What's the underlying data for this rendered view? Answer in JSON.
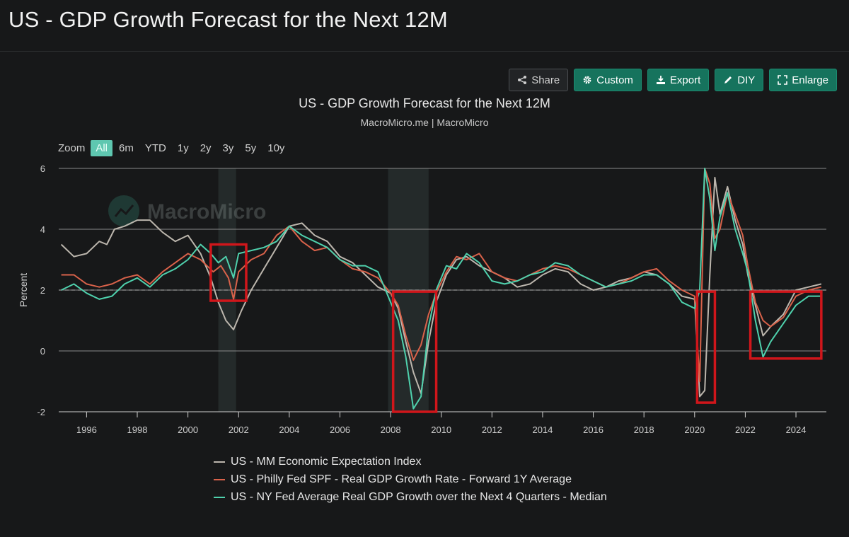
{
  "header": {
    "title": "US - GDP Growth Forecast for the Next 12M"
  },
  "toolbar": {
    "buttons": [
      {
        "name": "share-button",
        "label": "Share",
        "icon": "share-icon",
        "style": "share"
      },
      {
        "name": "custom-button",
        "label": "Custom",
        "icon": "gear-icon",
        "style": "accent"
      },
      {
        "name": "export-button",
        "label": "Export",
        "icon": "download-icon",
        "style": "accent"
      },
      {
        "name": "diy-button",
        "label": "DIY",
        "icon": "pencil-icon",
        "style": "accent"
      },
      {
        "name": "enlarge-button",
        "label": "Enlarge",
        "icon": "expand-icon",
        "style": "accent"
      }
    ]
  },
  "zoom": {
    "label": "Zoom",
    "options": [
      "All",
      "6m",
      "YTD",
      "1y",
      "2y",
      "3y",
      "5y",
      "10y"
    ],
    "selected": "All"
  },
  "watermark": "MacroMicro",
  "colors": {
    "background": "#171819",
    "accent": "#16735d",
    "grid": "#8a8a8a",
    "highlight_box": "#d0161b",
    "recession_band": "#242a2a"
  },
  "chart_data": {
    "type": "line",
    "title": "US - GDP Growth Forecast for the Next 12M",
    "subtitle": "MacroMicro.me | MacroMicro",
    "xlabel": "",
    "ylabel": "Percent",
    "xlim": [
      1994.9,
      2025.2
    ],
    "ylim": [
      -2,
      6
    ],
    "x_ticks": [
      1996,
      1998,
      2000,
      2002,
      2004,
      2006,
      2008,
      2010,
      2012,
      2014,
      2016,
      2018,
      2020,
      2022,
      2024
    ],
    "y_ticks": [
      -2,
      0,
      2,
      4,
      6
    ],
    "grid": true,
    "reference_line": 2,
    "legend_position": "bottom-left",
    "recession_bands": [
      [
        2001.2,
        2001.9
      ],
      [
        2007.9,
        2009.5
      ]
    ],
    "highlight_boxes": [
      {
        "x": [
          2000.9,
          2002.3
        ],
        "y": [
          1.65,
          3.5
        ]
      },
      {
        "x": [
          2008.1,
          2009.8
        ],
        "y": [
          -2.0,
          1.95
        ]
      },
      {
        "x": [
          2020.1,
          2020.8
        ],
        "y": [
          -1.7,
          1.95
        ]
      },
      {
        "x": [
          2022.2,
          2025.0
        ],
        "y": [
          -0.25,
          1.95
        ]
      }
    ],
    "series": [
      {
        "name": "US - MM Economic Expectation Index",
        "color": "#bcb6ad",
        "x": [
          1995.0,
          1995.5,
          1996.0,
          1996.5,
          1996.8,
          1997.1,
          1997.5,
          1998.0,
          1998.5,
          1999.0,
          1999.5,
          2000.0,
          2000.5,
          2000.9,
          2001.2,
          2001.5,
          2001.8,
          2002.1,
          2002.5,
          2003.0,
          2003.5,
          2004.0,
          2004.5,
          2005.0,
          2005.5,
          2006.0,
          2006.5,
          2007.0,
          2007.5,
          2008.0,
          2008.3,
          2008.6,
          2008.9,
          2009.2,
          2009.5,
          2009.8,
          2010.2,
          2010.6,
          2011.0,
          2011.5,
          2012.0,
          2012.5,
          2013.0,
          2013.5,
          2014.0,
          2014.5,
          2015.0,
          2015.5,
          2016.0,
          2016.5,
          2017.0,
          2017.5,
          2018.0,
          2018.5,
          2019.0,
          2019.5,
          2020.0,
          2020.2,
          2020.4,
          2020.6,
          2020.8,
          2021.0,
          2021.3,
          2021.6,
          2021.9,
          2022.1,
          2022.4,
          2022.7,
          2023.0,
          2023.5,
          2024.0,
          2024.5,
          2025.0
        ],
        "values": [
          3.5,
          3.1,
          3.2,
          3.6,
          3.5,
          4.0,
          4.1,
          4.3,
          4.3,
          3.9,
          3.6,
          3.8,
          3.2,
          2.4,
          1.6,
          1.0,
          0.7,
          1.3,
          2.0,
          2.7,
          3.4,
          4.1,
          4.2,
          3.8,
          3.6,
          3.1,
          2.9,
          2.5,
          2.1,
          1.9,
          1.4,
          0.3,
          -0.7,
          -1.4,
          0.3,
          1.6,
          2.5,
          3.0,
          3.1,
          2.8,
          2.6,
          2.4,
          2.1,
          2.2,
          2.5,
          2.7,
          2.6,
          2.2,
          2.0,
          2.1,
          2.3,
          2.4,
          2.6,
          2.5,
          2.2,
          1.8,
          1.7,
          -1.5,
          -1.3,
          2.5,
          5.7,
          4.5,
          5.4,
          4.3,
          3.5,
          2.5,
          1.5,
          0.5,
          0.8,
          1.2,
          2.0,
          2.1,
          2.2
        ]
      },
      {
        "name": "US - Philly Fed SPF - Real GDP Growth Rate - Forward 1Y Average",
        "color": "#d9624a",
        "x": [
          1995.0,
          1995.5,
          1996.0,
          1996.5,
          1997.0,
          1997.5,
          1998.0,
          1998.5,
          1999.0,
          1999.5,
          2000.0,
          2000.5,
          2001.0,
          2001.3,
          2001.6,
          2001.8,
          2002.0,
          2002.5,
          2003.0,
          2003.5,
          2004.0,
          2004.5,
          2005.0,
          2005.5,
          2006.0,
          2006.5,
          2007.0,
          2007.5,
          2008.0,
          2008.3,
          2008.6,
          2008.9,
          2009.2,
          2009.5,
          2009.8,
          2010.2,
          2010.6,
          2011.0,
          2011.5,
          2012.0,
          2012.5,
          2013.0,
          2013.5,
          2014.0,
          2014.5,
          2015.0,
          2015.5,
          2016.0,
          2016.5,
          2017.0,
          2017.5,
          2018.0,
          2018.5,
          2019.0,
          2019.5,
          2020.0,
          2020.2,
          2020.4,
          2020.6,
          2020.8,
          2021.0,
          2021.3,
          2021.6,
          2021.9,
          2022.1,
          2022.4,
          2022.7,
          2023.0,
          2023.5,
          2024.0,
          2024.5,
          2025.0
        ],
        "values": [
          2.5,
          2.5,
          2.2,
          2.1,
          2.2,
          2.4,
          2.5,
          2.2,
          2.6,
          2.9,
          3.2,
          3.0,
          2.6,
          2.8,
          2.4,
          1.7,
          2.6,
          3.0,
          3.2,
          3.8,
          4.1,
          3.6,
          3.3,
          3.4,
          3.0,
          2.7,
          2.6,
          2.4,
          1.9,
          1.5,
          0.5,
          -0.3,
          0.2,
          1.2,
          1.9,
          2.6,
          3.1,
          3.0,
          3.2,
          2.6,
          2.4,
          2.3,
          2.5,
          2.7,
          2.8,
          2.7,
          2.5,
          2.3,
          2.1,
          2.2,
          2.4,
          2.6,
          2.7,
          2.3,
          2.0,
          1.8,
          -1.0,
          6.0,
          5.5,
          3.7,
          4.0,
          5.2,
          4.5,
          3.8,
          2.8,
          1.6,
          1.0,
          0.8,
          1.1,
          1.8,
          2.0,
          2.1
        ]
      },
      {
        "name": "US - NY Fed Average Real GDP Growth over the Next 4 Quarters - Median",
        "color": "#4fd1ad",
        "x": [
          1995.0,
          1995.5,
          1996.0,
          1996.5,
          1997.0,
          1997.5,
          1998.0,
          1998.5,
          1999.0,
          1999.5,
          2000.0,
          2000.5,
          2000.9,
          2001.2,
          2001.5,
          2001.8,
          2002.0,
          2002.5,
          2003.0,
          2003.5,
          2004.0,
          2004.5,
          2005.0,
          2005.5,
          2006.0,
          2006.5,
          2007.0,
          2007.5,
          2008.0,
          2008.3,
          2008.6,
          2008.9,
          2009.2,
          2009.5,
          2009.8,
          2010.2,
          2010.6,
          2011.0,
          2011.5,
          2012.0,
          2012.5,
          2013.0,
          2013.5,
          2014.0,
          2014.5,
          2015.0,
          2015.5,
          2016.0,
          2016.5,
          2017.0,
          2017.5,
          2018.0,
          2018.5,
          2019.0,
          2019.5,
          2020.0,
          2020.2,
          2020.4,
          2020.6,
          2020.8,
          2021.0,
          2021.3,
          2021.6,
          2021.9,
          2022.1,
          2022.4,
          2022.7,
          2023.0,
          2023.5,
          2024.0,
          2024.5,
          2025.0
        ],
        "values": [
          2.0,
          2.2,
          1.9,
          1.7,
          1.8,
          2.2,
          2.4,
          2.1,
          2.5,
          2.7,
          3.0,
          3.5,
          3.2,
          2.9,
          3.1,
          2.4,
          3.2,
          3.3,
          3.4,
          3.6,
          4.1,
          3.8,
          3.6,
          3.4,
          3.0,
          2.8,
          2.8,
          2.6,
          1.6,
          1.0,
          -0.2,
          -1.9,
          -1.5,
          0.8,
          2.0,
          2.8,
          2.7,
          3.2,
          2.9,
          2.3,
          2.2,
          2.3,
          2.5,
          2.6,
          2.9,
          2.8,
          2.5,
          2.3,
          2.1,
          2.2,
          2.3,
          2.5,
          2.5,
          2.2,
          1.6,
          1.4,
          2.0,
          6.0,
          5.0,
          3.3,
          4.4,
          5.2,
          4.0,
          3.2,
          2.6,
          1.0,
          -0.2,
          0.3,
          0.9,
          1.5,
          1.8,
          1.8
        ]
      }
    ]
  }
}
